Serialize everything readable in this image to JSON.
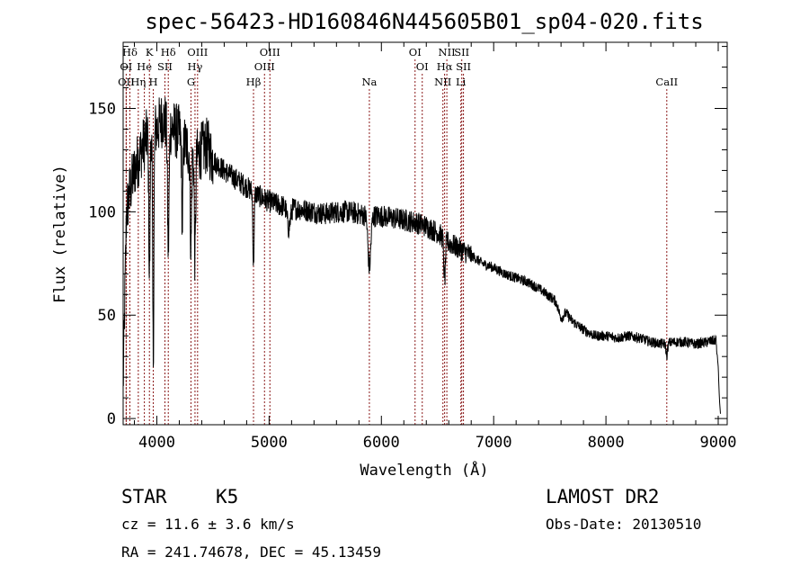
{
  "chart_data": {
    "type": "line",
    "title": "spec-56423-HD160846N445605B01_sp04-020.fits",
    "xlabel": "Wavelength (Å)",
    "ylabel": "Flux (relative)",
    "xlim": [
      3700,
      9080
    ],
    "ylim": [
      -3,
      182
    ],
    "x_ticks": [
      4000,
      5000,
      6000,
      7000,
      8000,
      9000
    ],
    "y_ticks": [
      0,
      50,
      100,
      150
    ],
    "grid": false,
    "line_color": "#000000",
    "marker_color": "#8b1a1a",
    "spectral_lines": [
      {
        "label": "Hδ",
        "wavelength": 3760,
        "row": 0
      },
      {
        "label": "K",
        "wavelength": 3934,
        "row": 0
      },
      {
        "label": "Hδ",
        "wavelength": 4102,
        "row": 0
      },
      {
        "label": "OIII",
        "wavelength": 4363,
        "row": 0
      },
      {
        "label": "OIII",
        "wavelength": 5007,
        "row": 0
      },
      {
        "label": "OI",
        "wavelength": 6300,
        "row": 0
      },
      {
        "label": "NII",
        "wavelength": 6583,
        "row": 0
      },
      {
        "label": "SII",
        "wavelength": 6716,
        "row": 0
      },
      {
        "label": "OI",
        "wavelength": 3727,
        "row": 1
      },
      {
        "label": "He",
        "wavelength": 3889,
        "row": 1
      },
      {
        "label": "SII",
        "wavelength": 4072,
        "row": 1
      },
      {
        "label": "Hγ",
        "wavelength": 4340,
        "row": 1
      },
      {
        "label": "OIII",
        "wavelength": 4959,
        "row": 1
      },
      {
        "label": "OI",
        "wavelength": 6364,
        "row": 1
      },
      {
        "label": "Hα",
        "wavelength": 6563,
        "row": 1
      },
      {
        "label": "SII",
        "wavelength": 6731,
        "row": 1
      },
      {
        "label": "OII",
        "wavelength": 3727,
        "row": 2
      },
      {
        "label": "Hη",
        "wavelength": 3835,
        "row": 2
      },
      {
        "label": "H",
        "wavelength": 3968,
        "row": 2
      },
      {
        "label": "G",
        "wavelength": 4304,
        "row": 2
      },
      {
        "label": "Hβ",
        "wavelength": 4861,
        "row": 2
      },
      {
        "label": "Na",
        "wavelength": 5893,
        "row": 2
      },
      {
        "label": "NII",
        "wavelength": 6548,
        "row": 2
      },
      {
        "label": "Li",
        "wavelength": 6708,
        "row": 2
      },
      {
        "label": "CaII",
        "wavelength": 8542,
        "row": 2
      }
    ],
    "continuum": {
      "x": [
        3700,
        3730,
        3760,
        3800,
        3850,
        3900,
        3950,
        4000,
        4050,
        4100,
        4150,
        4200,
        4250,
        4300,
        4350,
        4400,
        4450,
        4500,
        4600,
        4700,
        4800,
        4900,
        5000,
        5100,
        5200,
        5300,
        5400,
        5500,
        5600,
        5700,
        5800,
        5900,
        6000,
        6100,
        6200,
        6300,
        6400,
        6500,
        6600,
        6700,
        6800,
        6900,
        7000,
        7100,
        7200,
        7300,
        7400,
        7500,
        7600,
        7700,
        7800,
        7900,
        8000,
        8100,
        8200,
        8300,
        8400,
        8500,
        8600,
        8700,
        8800,
        8900,
        8980,
        9000,
        9010,
        9020
      ],
      "y": [
        15,
        100,
        110,
        120,
        128,
        135,
        140,
        140,
        145,
        142,
        140,
        138,
        133,
        128,
        126,
        130,
        132,
        125,
        120,
        116,
        112,
        108,
        105,
        103,
        102,
        101,
        100,
        99,
        100,
        100,
        99,
        98,
        98,
        97,
        96,
        95,
        93,
        90,
        85,
        82,
        79,
        75,
        73,
        70,
        68,
        66,
        63,
        59,
        55,
        47,
        43,
        40,
        40,
        39,
        40,
        39,
        37,
        36,
        37,
        37,
        36,
        37,
        38,
        25,
        10,
        2
      ]
    },
    "absorption_features": [
      {
        "x": 3934,
        "depth": 70,
        "width": 8
      },
      {
        "x": 3968,
        "depth": 110,
        "width": 8
      },
      {
        "x": 4102,
        "depth": 60,
        "width": 10
      },
      {
        "x": 4227,
        "depth": 40,
        "width": 8
      },
      {
        "x": 4304,
        "depth": 45,
        "width": 8
      },
      {
        "x": 4340,
        "depth": 50,
        "width": 8
      },
      {
        "x": 4861,
        "depth": 35,
        "width": 8
      },
      {
        "x": 5175,
        "depth": 10,
        "width": 20
      },
      {
        "x": 5893,
        "depth": 25,
        "width": 18
      },
      {
        "x": 6563,
        "depth": 20,
        "width": 10
      },
      {
        "x": 7600,
        "depth": 6,
        "width": 30
      },
      {
        "x": 8542,
        "depth": 6,
        "width": 10
      }
    ],
    "noise": {
      "blue_amplitude": 28,
      "mid_amplitude": 11,
      "red_amplitude": 5
    }
  },
  "info": {
    "left_line1_a": "STAR",
    "left_line1_b": "K5",
    "left_line2": "cz = 11.6 ± 3.6 km/s",
    "left_line3": "RA = 241.74678, DEC =  45.13459",
    "right_line1": "LAMOST DR2",
    "right_line2": "Obs-Date: 20130510"
  }
}
